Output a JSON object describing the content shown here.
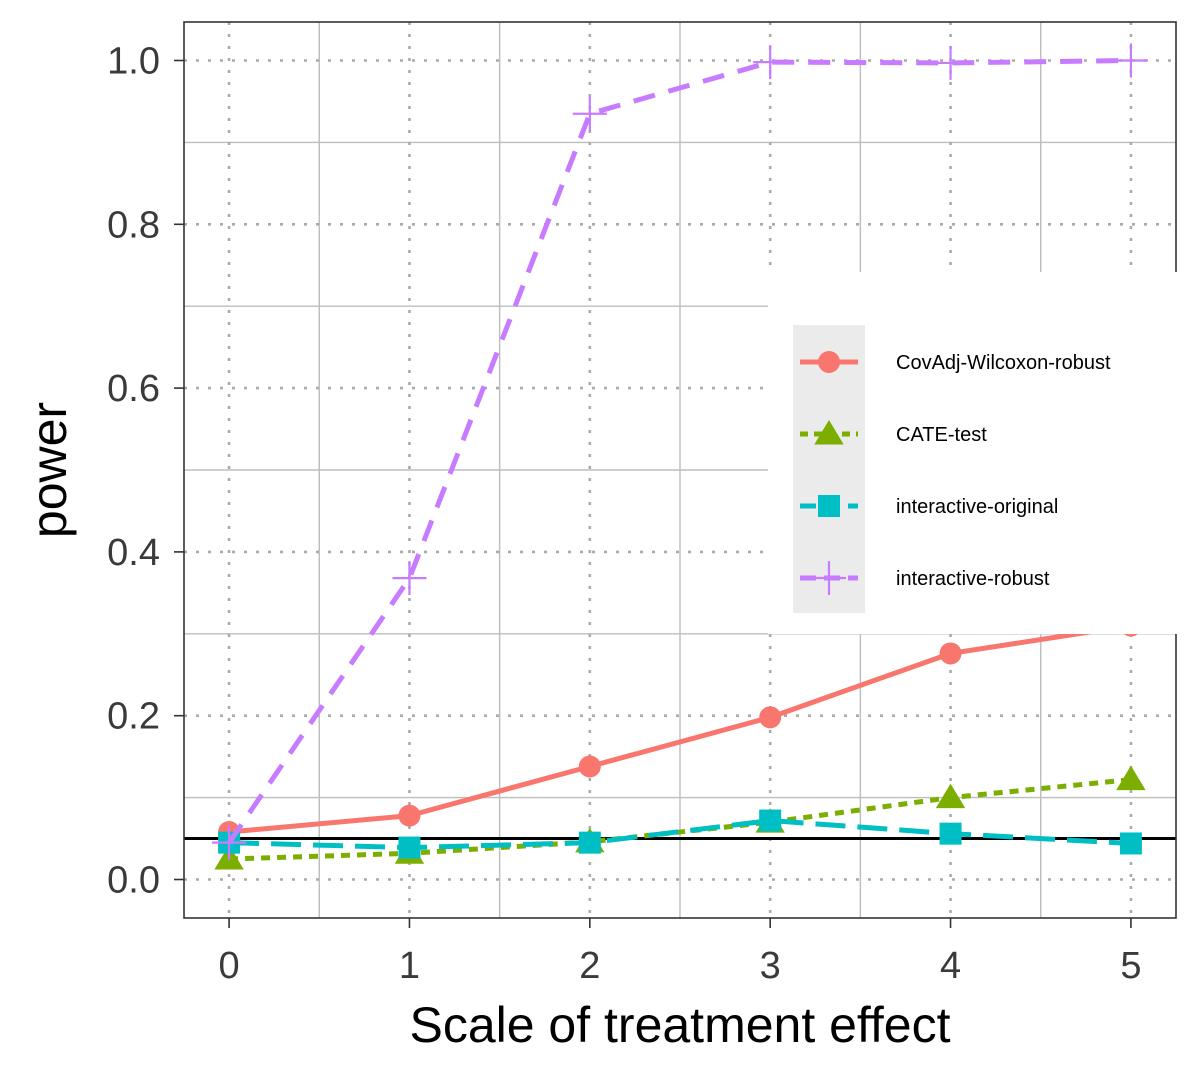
{
  "chart_data": {
    "type": "line",
    "title": "",
    "xlabel": "Scale of treatment effect",
    "ylabel": "power",
    "x": [
      0,
      1,
      2,
      3,
      4,
      5
    ],
    "xticks": [
      "0",
      "1",
      "2",
      "3",
      "4",
      "5"
    ],
    "yticks": [
      "0.0",
      "0.2",
      "0.4",
      "0.6",
      "0.8",
      "1.0"
    ],
    "xlim": [
      -0.25,
      5.25
    ],
    "ylim": [
      -0.047,
      1.047
    ],
    "reference_line": 0.05,
    "grid": true,
    "legend_position": "right",
    "series": [
      {
        "name": "CovAdj-Wilcoxon-robust",
        "color": "#F8766D",
        "linestyle": "solid",
        "marker": "circle",
        "values": [
          0.058,
          0.078,
          0.138,
          0.198,
          0.276,
          0.31
        ]
      },
      {
        "name": "CATE-test",
        "color": "#7CAE00",
        "linestyle": "dotted",
        "marker": "triangle",
        "values": [
          0.025,
          0.032,
          0.046,
          0.07,
          0.1,
          0.122
        ]
      },
      {
        "name": "interactive-original",
        "color": "#00BFC4",
        "linestyle": "longdash",
        "marker": "square",
        "values": [
          0.045,
          0.039,
          0.045,
          0.072,
          0.056,
          0.044
        ]
      },
      {
        "name": "interactive-robust",
        "color": "#C77CFF",
        "linestyle": "dashed",
        "marker": "plus",
        "values": [
          0.045,
          0.368,
          0.935,
          0.998,
          0.997,
          1.0
        ]
      }
    ]
  }
}
